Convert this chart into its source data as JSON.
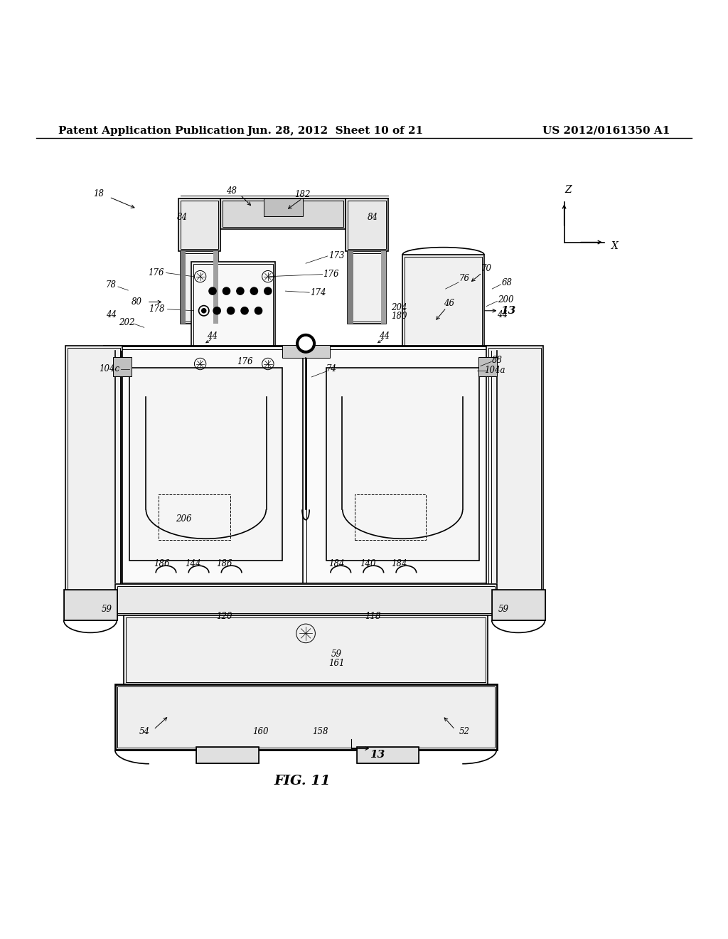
{
  "header_left": "Patent Application Publication",
  "header_center": "Jun. 28, 2012  Sheet 10 of 21",
  "header_right": "US 2012/0161350 A1",
  "figure_label": "FIG. 11",
  "bg_color": "#ffffff",
  "line_color": "#000000",
  "header_font_size": 11,
  "label_font_size": 9
}
